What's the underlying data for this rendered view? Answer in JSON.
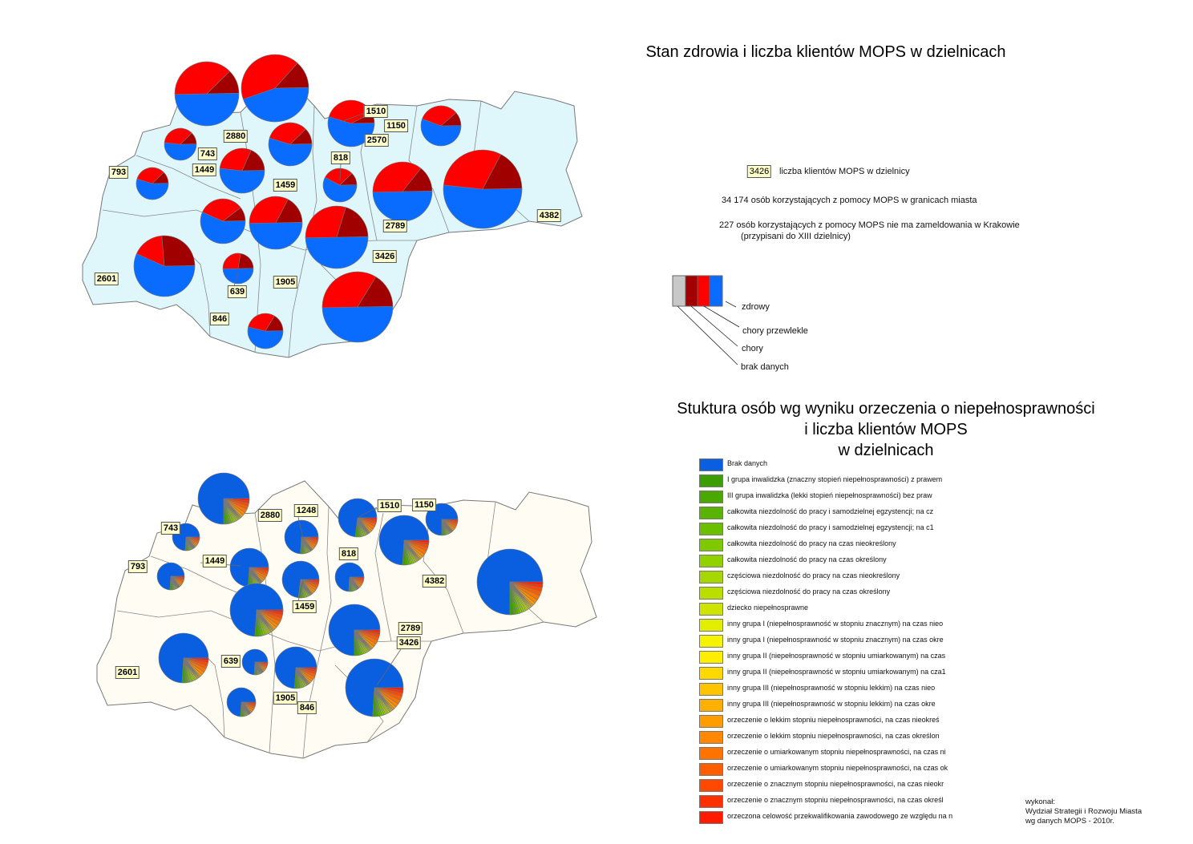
{
  "title_top": "Stan zdrowia i liczba klientów MOPS w dzielnicach",
  "title_bottom": [
    "Stuktura osób wg wyniku orzeczenia o niepełnosprawności",
    "i liczba klientów MOPS",
    "w dzielnicach"
  ],
  "legend_top": {
    "sample_value": "3426",
    "sample_text": "liczba klientów MOPS w dzielnicy",
    "note1": "34 174 osób korzystających z pomocy MOPS w granicach miasta",
    "note2a": "227 osób korzystających z pomocy MOPS nie ma zameldowania w Krakowie",
    "note2b": "(przypisani do XIII dzielnicy)",
    "categories": [
      {
        "label": "zdrowy",
        "color": "#0a6cff"
      },
      {
        "label": "chory przewlekle",
        "color": "#a00000"
      },
      {
        "label": "chory",
        "color": "#ff0000"
      },
      {
        "label": "brak danych",
        "color": "#c8c8c8"
      }
    ]
  },
  "legend_bottom": [
    {
      "label": "Brak danych",
      "color": "#0a5ee0"
    },
    {
      "label": "I grupa inwalidzka (znaczny stopień niepełnosprawności) z prawem",
      "color": "#3c9e00"
    },
    {
      "label": "III grupa inwalidzka (lekki stopień niepełnosprawności) bez praw",
      "color": "#4aa800"
    },
    {
      "label": "całkowita niezdolność do pracy i samodzielnej egzystencji; na cz",
      "color": "#5ab300"
    },
    {
      "label": "całkowita niezdolność do pracy i samodzielnej egzystencji; na c1",
      "color": "#6cbe00"
    },
    {
      "label": "całkowita niezdolność do pracy na czas nieokreślony",
      "color": "#7ec800"
    },
    {
      "label": "całkowita niezdolność do pracy na czas określony",
      "color": "#92d100"
    },
    {
      "label": "częściowa niezdolność do pracy na czas nieokreślony",
      "color": "#a6d800"
    },
    {
      "label": "częściowa niezdolność do pracy na czas określony",
      "color": "#bade00"
    },
    {
      "label": "dziecko niepełnosprawne",
      "color": "#cde400"
    },
    {
      "label": "inny grupa I (niepełnosprawność w stopniu znacznym) na czas nieo",
      "color": "#e2ee00"
    },
    {
      "label": "inny grupa I (niepełnosprawność w stopniu znacznym) na czas okre",
      "color": "#f4f400"
    },
    {
      "label": "inny grupa II (niepełnosprawność w stopniu umiarkowanym) na czas",
      "color": "#ffee00"
    },
    {
      "label": "inny grupa II (niepełnosprawność w stopniu umiarkowanym) na cza1",
      "color": "#ffd800"
    },
    {
      "label": "inny grupa III (niepełnosprawność w stopniu lekkim) na czas nieo",
      "color": "#ffc400"
    },
    {
      "label": "inny grupa III (niepełnosprawność w stopniu lekkim) na czas okre",
      "color": "#ffb000"
    },
    {
      "label": "orzeczenie o lekkim stopniu niepełnosprawności, na czas nieokreś",
      "color": "#ff9c00"
    },
    {
      "label": "orzeczenie o lekkim stopniu niepełnosprawności, na czas określon",
      "color": "#ff8800"
    },
    {
      "label": "orzeczenie o umiarkowanym stopniu niepełnosprawności, na czas ni",
      "color": "#ff7400"
    },
    {
      "label": "orzeczenie o umiarkowanym stopniu niepełnosprawności, na czas ok",
      "color": "#ff5e00"
    },
    {
      "label": "orzeczenie o znacznym stopniu niepełnosprawności, na czas nieokr",
      "color": "#ff4800"
    },
    {
      "label": "orzeczenie o znacznym stopniu niepełnosprawności, na czas określ",
      "color": "#ff3000"
    },
    {
      "label": "orzeczona celowość przekwalifikowania zawodowego ze względu na n",
      "color": "#ff1a00"
    }
  ],
  "credit": [
    "wykonał:",
    "Wydział Strategii i Rozwoju Miasta",
    "wg danych MOPS - 2010r."
  ],
  "chart_data": [
    {
      "type": "pie",
      "title": "Stan zdrowia i liczba klientów MOPS w dzielnicach",
      "map_fill": "#dff7fb",
      "district_labels": [
        "1510",
        "1150",
        "2880",
        "2570",
        "743",
        "818",
        "793",
        "1449",
        "1459",
        "2789",
        "4382",
        "3426",
        "2601",
        "639",
        "1905",
        "846"
      ],
      "pie_series": [
        "zdrowy",
        "chory",
        "chory przewlekle"
      ],
      "pies": [
        {
          "clients": 2880,
          "shares": [
            0.5,
            0.38,
            0.12
          ]
        },
        {
          "clients": 2570,
          "shares": [
            0.45,
            0.42,
            0.13
          ]
        },
        {
          "clients": 1510,
          "shares": [
            0.55,
            0.38,
            0.07
          ]
        },
        {
          "clients": 1150,
          "shares": [
            0.56,
            0.33,
            0.11
          ]
        },
        {
          "clients": 743,
          "shares": [
            0.52,
            0.36,
            0.12
          ]
        },
        {
          "clients": 1459,
          "shares": [
            0.55,
            0.33,
            0.12
          ]
        },
        {
          "clients": 1449,
          "shares": [
            0.52,
            0.3,
            0.18
          ]
        },
        {
          "clients": 793,
          "shares": [
            0.55,
            0.33,
            0.12
          ]
        },
        {
          "clients": 818,
          "shares": [
            0.58,
            0.3,
            0.12
          ]
        },
        {
          "clients": 2789,
          "shares": [
            0.5,
            0.36,
            0.14
          ]
        },
        {
          "clients": 4382,
          "shares": [
            0.52,
            0.31,
            0.17
          ]
        },
        {
          "clients": 1248,
          "shares": [
            0.57,
            0.33,
            0.1
          ]
        },
        {
          "clients": 1905,
          "shares": [
            0.5,
            0.33,
            0.17
          ]
        },
        {
          "clients": 3426,
          "shares": [
            0.5,
            0.3,
            0.2
          ]
        },
        {
          "clients": 2601,
          "shares": [
            0.57,
            0.17,
            0.26
          ]
        },
        {
          "clients": 639,
          "shares": [
            0.5,
            0.28,
            0.22
          ]
        },
        {
          "clients": 2789,
          "shares": [
            0.5,
            0.34,
            0.16
          ]
        },
        {
          "clients": 846,
          "shares": [
            0.54,
            0.3,
            0.16
          ]
        }
      ]
    },
    {
      "type": "pie",
      "title": "Stuktura osób wg wyniku orzeczenia o niepełnosprawności i liczba klientów MOPS w dzielnicach",
      "map_fill": "#fffdf3",
      "district_labels": [
        "2880",
        "1248",
        "1510",
        "1150",
        "743",
        "818",
        "793",
        "1449",
        "4382",
        "1459",
        "2789",
        "3426",
        "2601",
        "639",
        "1905",
        "846"
      ],
      "brak_danych_shares": [
        0.75,
        0.74,
        0.73,
        0.75,
        0.74,
        0.73,
        0.74,
        0.74,
        0.74,
        0.74,
        0.75,
        0.74,
        0.74,
        0.74,
        0.74,
        0.74,
        0.75,
        0.74
      ],
      "other_category_relative_shares": [
        0.08,
        0.05,
        0.04,
        0.04,
        0.05,
        0.04,
        0.04,
        0.03,
        0.03,
        0.02,
        0.02,
        0.02,
        0.02,
        0.02,
        0.03,
        0.06,
        0.08,
        0.1,
        0.09,
        0.08,
        0.06,
        0.06
      ]
    }
  ]
}
